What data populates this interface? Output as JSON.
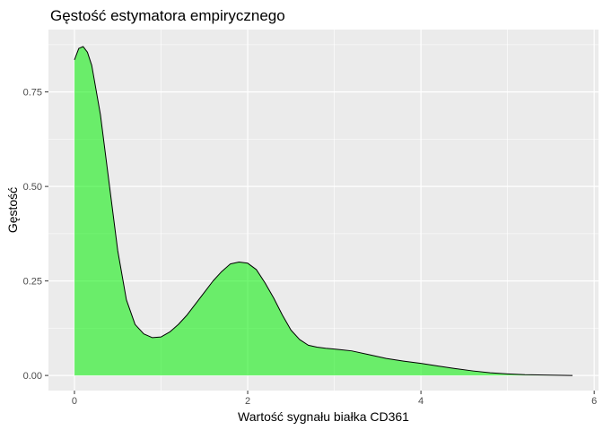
{
  "chart_data": {
    "type": "area",
    "title": "Gęstość estymatora empirycznego",
    "xlabel": "Wartość sygnału białka CD361",
    "ylabel": "Gęstość",
    "xlim": [
      -0.3,
      6.05
    ],
    "ylim": [
      -0.04,
      0.915
    ],
    "x_ticks": [
      0,
      2,
      4,
      6
    ],
    "x_tick_labels": [
      "0",
      "2",
      "4",
      "6"
    ],
    "y_ticks": [
      0,
      0.25,
      0.5,
      0.75
    ],
    "y_tick_labels": [
      "0.00",
      "0.25",
      "0.50",
      "0.75"
    ],
    "grid": true,
    "legend": "none",
    "colors": {
      "fill": "#00ee00",
      "fill_opacity": 0.55,
      "line": "#000000",
      "panel": "#ebebeb",
      "grid": "#ffffff"
    },
    "series": [
      {
        "x": [
          0.0,
          0.05,
          0.1,
          0.15,
          0.2,
          0.3,
          0.4,
          0.5,
          0.6,
          0.7,
          0.8,
          0.9,
          1.0,
          1.1,
          1.2,
          1.3,
          1.4,
          1.5,
          1.6,
          1.7,
          1.8,
          1.9,
          2.0,
          2.1,
          2.2,
          2.3,
          2.4,
          2.5,
          2.6,
          2.7,
          2.8,
          2.9,
          3.0,
          3.2,
          3.4,
          3.6,
          3.8,
          4.0,
          4.2,
          4.4,
          4.6,
          4.8,
          5.0,
          5.2,
          5.5,
          5.75
        ],
        "y": [
          0.835,
          0.865,
          0.87,
          0.855,
          0.82,
          0.69,
          0.51,
          0.33,
          0.2,
          0.135,
          0.11,
          0.1,
          0.102,
          0.115,
          0.135,
          0.16,
          0.19,
          0.22,
          0.25,
          0.275,
          0.295,
          0.3,
          0.297,
          0.28,
          0.245,
          0.205,
          0.16,
          0.12,
          0.095,
          0.08,
          0.075,
          0.072,
          0.07,
          0.065,
          0.055,
          0.045,
          0.038,
          0.032,
          0.025,
          0.018,
          0.012,
          0.007,
          0.004,
          0.002,
          0.001,
          0.0
        ]
      }
    ]
  }
}
